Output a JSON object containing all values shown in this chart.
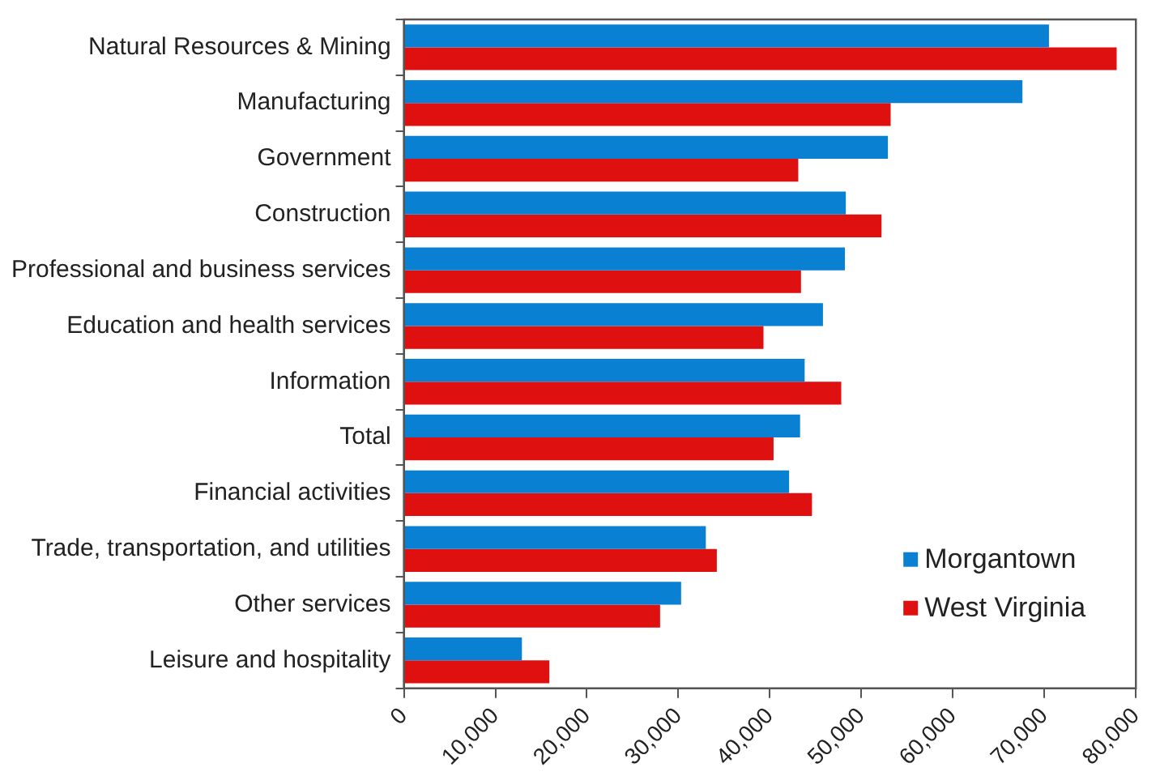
{
  "chart_data": {
    "type": "bar",
    "orientation": "horizontal",
    "categories": [
      "Natural Resources & Mining",
      "Manufacturing",
      "Government",
      "Construction",
      "Professional and business services",
      "Education and health services",
      "Information",
      "Total",
      "Financial activities",
      "Trade, transportation, and utilities",
      "Other services",
      "Leisure and hospitality"
    ],
    "series": [
      {
        "name": "Morgantown",
        "color": "#0a80d2",
        "values": [
          70500,
          67600,
          52900,
          48300,
          48200,
          45800,
          43800,
          43300,
          42100,
          33000,
          30300,
          12900
        ]
      },
      {
        "name": "West Virginia",
        "color": "#de1010",
        "values": [
          77900,
          53200,
          43100,
          52200,
          43400,
          39300,
          47800,
          40400,
          44600,
          34200,
          28000,
          15900
        ]
      }
    ],
    "xlim": [
      0,
      80000
    ],
    "xticks": [
      0,
      {
        "value": 10000,
        "label": "10,000"
      },
      {
        "value": 20000,
        "label": "20,000"
      },
      {
        "value": 30000,
        "label": "30,000"
      },
      {
        "value": 40000,
        "label": "40,000"
      },
      {
        "value": 50000,
        "label": "50,000"
      },
      {
        "value": 60000,
        "label": "60,000"
      },
      {
        "value": 70000,
        "label": "70,000"
      },
      {
        "value": 80000,
        "label": "80,000"
      }
    ],
    "grid": false,
    "legend": "bottom right"
  }
}
